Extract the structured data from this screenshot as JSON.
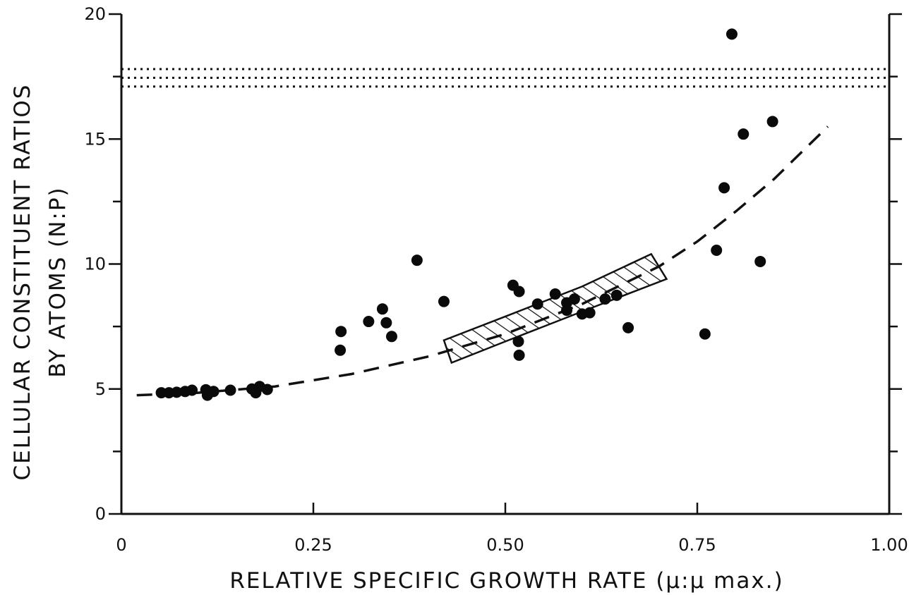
{
  "chart_data": {
    "type": "scatter",
    "xlabel": "RELATIVE SPECIFIC GROWTH RATE (μ:μ max.)",
    "ylabel_line1": "CELLULAR CONSTITUENT RATIOS",
    "ylabel_line2": "BY ATOMS (N:P)",
    "xlim": [
      0,
      1.0
    ],
    "ylim": [
      0,
      20
    ],
    "x_ticks": [
      0,
      0.25,
      0.5,
      0.75,
      1.0
    ],
    "x_tick_labels": [
      "0",
      "0.25",
      "0.50",
      "0.75",
      "1.00"
    ],
    "y_ticks": [
      0,
      5,
      10,
      15,
      20
    ],
    "y_tick_labels": [
      "0",
      "5",
      "10",
      "15",
      "20"
    ],
    "y_minor_step": 2.5,
    "grid": false,
    "points": [
      [
        0.052,
        4.85
      ],
      [
        0.062,
        4.85
      ],
      [
        0.072,
        4.87
      ],
      [
        0.083,
        4.9
      ],
      [
        0.092,
        4.95
      ],
      [
        0.11,
        4.97
      ],
      [
        0.112,
        4.75
      ],
      [
        0.12,
        4.9
      ],
      [
        0.142,
        4.95
      ],
      [
        0.17,
        5.0
      ],
      [
        0.175,
        4.85
      ],
      [
        0.18,
        5.1
      ],
      [
        0.19,
        4.98
      ],
      [
        0.285,
        6.55
      ],
      [
        0.286,
        7.3
      ],
      [
        0.322,
        7.7
      ],
      [
        0.34,
        8.2
      ],
      [
        0.345,
        7.65
      ],
      [
        0.352,
        7.1
      ],
      [
        0.385,
        10.15
      ],
      [
        0.42,
        8.5
      ],
      [
        0.51,
        9.15
      ],
      [
        0.518,
        8.9
      ],
      [
        0.517,
        6.9
      ],
      [
        0.518,
        6.35
      ],
      [
        0.542,
        8.4
      ],
      [
        0.565,
        8.8
      ],
      [
        0.58,
        8.15
      ],
      [
        0.58,
        8.45
      ],
      [
        0.59,
        8.6
      ],
      [
        0.6,
        8.0
      ],
      [
        0.61,
        8.05
      ],
      [
        0.63,
        8.6
      ],
      [
        0.645,
        8.75
      ],
      [
        0.66,
        7.45
      ],
      [
        0.76,
        7.2
      ],
      [
        0.775,
        10.55
      ],
      [
        0.785,
        13.05
      ],
      [
        0.795,
        19.2
      ],
      [
        0.81,
        15.2
      ],
      [
        0.832,
        10.1
      ],
      [
        0.848,
        15.7
      ]
    ],
    "trend_curve": {
      "style": "dashed",
      "points": [
        [
          0.02,
          4.75
        ],
        [
          0.1,
          4.85
        ],
        [
          0.2,
          5.1
        ],
        [
          0.3,
          5.6
        ],
        [
          0.4,
          6.3
        ],
        [
          0.5,
          7.2
        ],
        [
          0.6,
          8.4
        ],
        [
          0.7,
          9.9
        ],
        [
          0.75,
          10.9
        ],
        [
          0.8,
          12.1
        ],
        [
          0.85,
          13.4
        ],
        [
          0.9,
          14.9
        ],
        [
          0.92,
          15.5
        ]
      ]
    },
    "hatched_band": {
      "style": "diagonal-hatch",
      "upper": [
        [
          0.42,
          6.95
        ],
        [
          0.5,
          7.9
        ],
        [
          0.6,
          9.1
        ],
        [
          0.69,
          10.4
        ]
      ],
      "lower": [
        [
          0.43,
          6.05
        ],
        [
          0.5,
          6.9
        ],
        [
          0.6,
          8.1
        ],
        [
          0.71,
          9.4
        ]
      ]
    },
    "reference_lines": {
      "style": "dotted",
      "y": [
        17.1,
        17.45,
        17.8
      ]
    }
  }
}
